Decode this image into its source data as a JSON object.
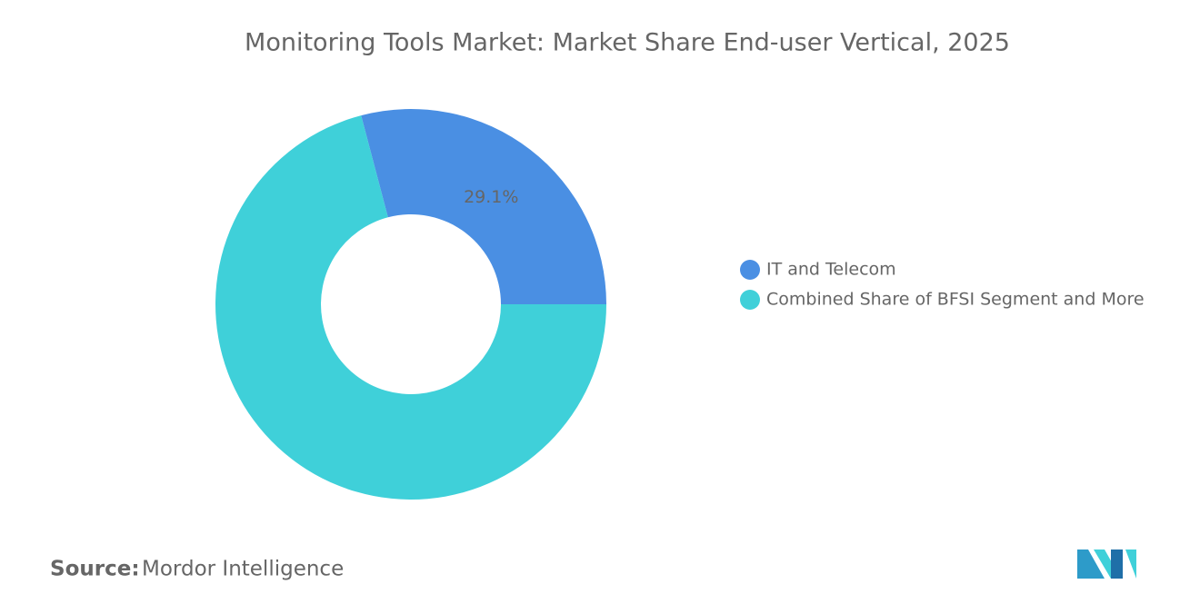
{
  "chart_data": {
    "type": "donut",
    "title": "Monitoring Tools Market: Market Share End-user Vertical, 2025",
    "categories": [
      "IT and Telecom",
      "Combined Share of BFSI Segment and More"
    ],
    "values": [
      29.1,
      70.9
    ],
    "value_labels": [
      "29.1%",
      null
    ],
    "colors": [
      "#4a8fe3",
      "#3fd0d9"
    ],
    "legend": "right",
    "source_label": "Source:",
    "source": "Mordor Intelligence"
  }
}
